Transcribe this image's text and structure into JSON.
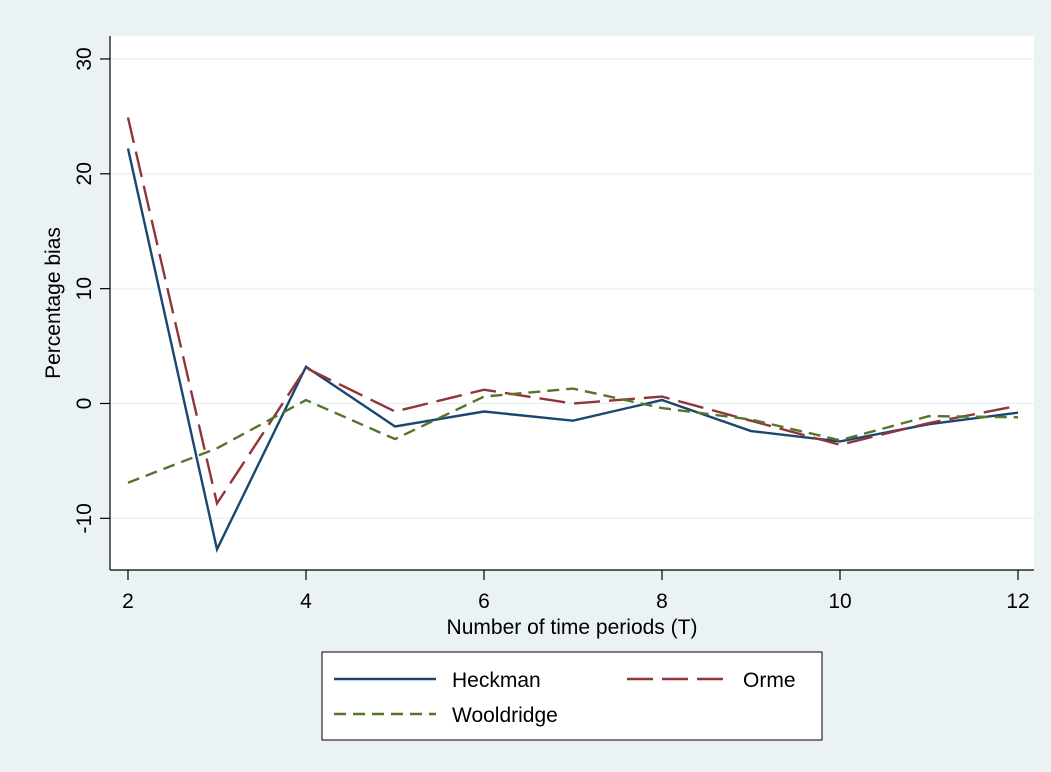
{
  "chart_data": {
    "type": "line",
    "xlabel": "Number of time periods (T)",
    "ylabel": "Percentage bias",
    "x": [
      2,
      3,
      4,
      5,
      6,
      7,
      8,
      9,
      10,
      11,
      12
    ],
    "xlim": [
      2,
      12
    ],
    "ylim": [
      -14.5,
      32
    ],
    "xticks": [
      2,
      4,
      6,
      8,
      10,
      12
    ],
    "yticks": [
      -10,
      0,
      10,
      20,
      30
    ],
    "grid": "horizontal",
    "legend_position": "bottom",
    "series": [
      {
        "name": "Heckman",
        "color": "#1a476f",
        "dash": "solid",
        "values": [
          22.2,
          -12.7,
          3.2,
          -2.0,
          -0.7,
          -1.5,
          0.3,
          -2.4,
          -3.3,
          -1.8,
          -0.8
        ]
      },
      {
        "name": "Orme",
        "color": "#90353b",
        "dash": "long",
        "values": [
          24.9,
          -8.7,
          3.1,
          -0.7,
          1.2,
          0.0,
          0.6,
          -1.5,
          -3.6,
          -1.7,
          -0.2
        ]
      },
      {
        "name": "Wooldridge",
        "color": "#55752f",
        "dash": "short",
        "values": [
          -6.9,
          -3.9,
          0.3,
          -3.1,
          0.6,
          1.3,
          -0.4,
          -1.4,
          -3.2,
          -1.1,
          -1.2
        ]
      }
    ],
    "colors": {
      "background": "#eaf2f3",
      "plot_background": "#ffffff",
      "grid": "#eaf2f3"
    }
  }
}
